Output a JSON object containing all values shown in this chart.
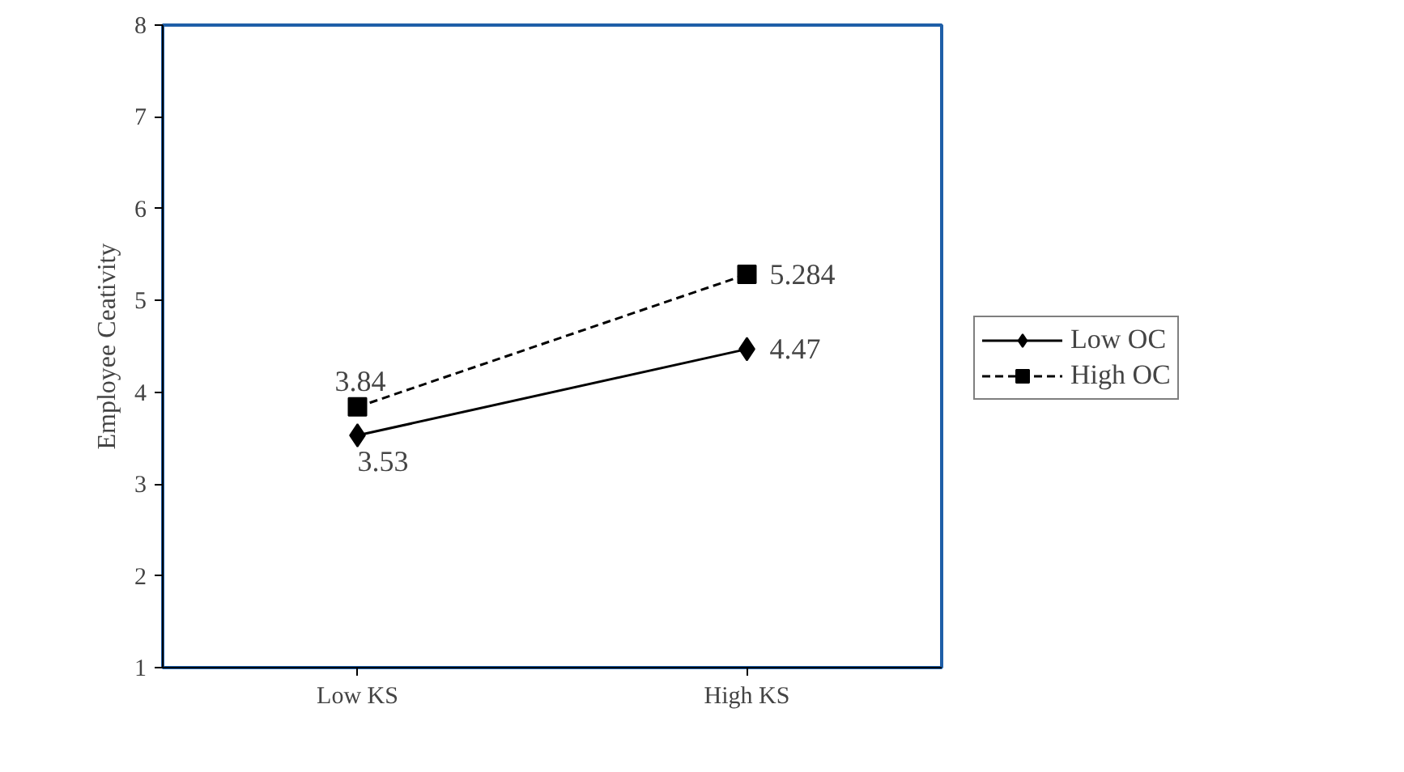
{
  "chart_data": {
    "type": "line",
    "ylabel": "Employee Ceativity",
    "categories": [
      "Low KS",
      "High KS"
    ],
    "series": [
      {
        "name": "Low OC",
        "color": "#000000",
        "values": [
          3.53,
          4.47
        ],
        "marker": "diamond",
        "line_style": "solid"
      },
      {
        "name": "High OC",
        "color": "#000000",
        "values": [
          3.84,
          5.284
        ],
        "marker": "square",
        "line_style": "dashed"
      }
    ],
    "ylim": [
      1,
      8
    ],
    "yticks": [
      1,
      2,
      3,
      4,
      5,
      6,
      7,
      8
    ],
    "grid": false,
    "legend": "right",
    "data_labels": true
  }
}
